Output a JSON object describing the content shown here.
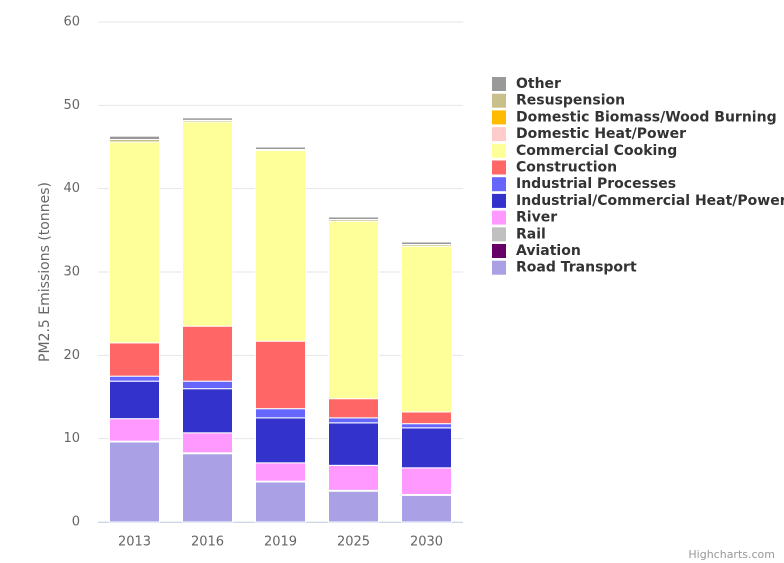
{
  "chart_data": {
    "type": "stacked-bar",
    "y_label": "PM2.5 Emissions (tonnes)",
    "credits": "Highcharts.com",
    "categories": [
      "2013",
      "2016",
      "2019",
      "2025",
      "2030"
    ],
    "ylim": [
      0,
      60
    ],
    "yticks": [
      0,
      10,
      20,
      30,
      40,
      50,
      60
    ],
    "grid": true,
    "series": [
      {
        "name": "Road Transport",
        "color": "#a9a0e6",
        "values": [
          9.6,
          8.2,
          4.8,
          3.7,
          3.2
        ]
      },
      {
        "name": "Aviation",
        "color": "#660066",
        "values": [
          0,
          0,
          0,
          0,
          0
        ]
      },
      {
        "name": "Rail",
        "color": "#c0c0c0",
        "values": [
          0.1,
          0.1,
          0.1,
          0.1,
          0.1
        ]
      },
      {
        "name": "River",
        "color": "#ff99ff",
        "values": [
          2.7,
          2.4,
          2.2,
          3.0,
          3.2
        ]
      },
      {
        "name": "Industrial/Commercial Heat/Power",
        "color": "#3333cc",
        "values": [
          4.5,
          5.3,
          5.4,
          5.1,
          4.8
        ]
      },
      {
        "name": "Industrial Processes",
        "color": "#6666ff",
        "values": [
          0.6,
          0.9,
          1.1,
          0.6,
          0.5
        ]
      },
      {
        "name": "Construction",
        "color": "#ff6666",
        "values": [
          4.0,
          6.6,
          8.1,
          2.3,
          1.4
        ]
      },
      {
        "name": "Commercial Cooking",
        "color": "#ffff99",
        "values": [
          24.1,
          24.5,
          22.9,
          21.3,
          19.9
        ]
      },
      {
        "name": "Domestic Heat/Power",
        "color": "#ffcccc",
        "values": [
          0,
          0,
          0,
          0,
          0
        ]
      },
      {
        "name": "Domestic Biomass/Wood Burning",
        "color": "#ffbb00",
        "values": [
          0,
          0,
          0,
          0,
          0
        ]
      },
      {
        "name": "Resuspension",
        "color": "#c8bf8a",
        "values": [
          0.3,
          0.2,
          0.1,
          0.2,
          0.2
        ]
      },
      {
        "name": "Other",
        "color": "#999999",
        "values": [
          0.4,
          0.3,
          0.3,
          0.3,
          0.3
        ]
      }
    ]
  }
}
